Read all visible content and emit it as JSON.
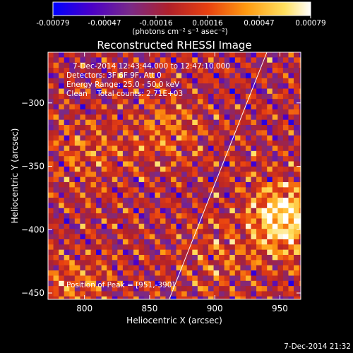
{
  "figure": {
    "title": "Reconstructed RHESSI Image",
    "timestamp": "7-Dec-2014 21:32"
  },
  "colorbar": {
    "tick_labels": [
      "-0.00079",
      "-0.00047",
      "-0.00016",
      "0.00016",
      "0.00047",
      "0.00079"
    ],
    "units_label": "(photons cm⁻² s⁻¹ asec⁻²)",
    "range": [
      -0.00079,
      0.00079
    ],
    "colormap": [
      "#0000ff",
      "#4b00c8",
      "#7a2a88",
      "#b0202a",
      "#e84010",
      "#ff9a10",
      "#ffe060",
      "#ffffff"
    ]
  },
  "info": {
    "line1": "7-Dec-2014 12:43:44.000 to 12:47:10.000",
    "line2": "Detectors: 3F 6F 9F, Att 0",
    "line3": "Energy Range: 25.0 - 50.0 keV",
    "line4": "Clean    Total counts: 2.71E+03",
    "peak": "Position of Peak = [951,-390]"
  },
  "chart_data": {
    "type": "heatmap",
    "title": "Reconstructed RHESSI Image",
    "xlabel": "Heliocentric X (arcsec)",
    "ylabel": "Heliocentric Y (arcsec)",
    "xlim": [
      772,
      966
    ],
    "ylim": [
      -455,
      -260
    ],
    "x_ticks": [
      800,
      850,
      900,
      950
    ],
    "y_ticks": [
      -300,
      -350,
      -400,
      -450
    ],
    "x_tick_labels": [
      "800",
      "850",
      "900",
      "950"
    ],
    "y_tick_labels": [
      "−300",
      "−350",
      "−400",
      "−450"
    ],
    "grid": false,
    "peak_position": [
      951,
      -390
    ],
    "limb_line": [
      [
        865,
        -455
      ],
      [
        940,
        -260
      ]
    ],
    "sources": [
      {
        "x": 951,
        "y": -390,
        "strength": 1.0
      },
      {
        "x": 860,
        "y": -320,
        "strength": 0.35
      },
      {
        "x": 800,
        "y": -340,
        "strength": 0.3
      },
      {
        "x": 790,
        "y": -440,
        "strength": 0.3
      },
      {
        "x": 900,
        "y": -420,
        "strength": 0.25
      }
    ]
  }
}
